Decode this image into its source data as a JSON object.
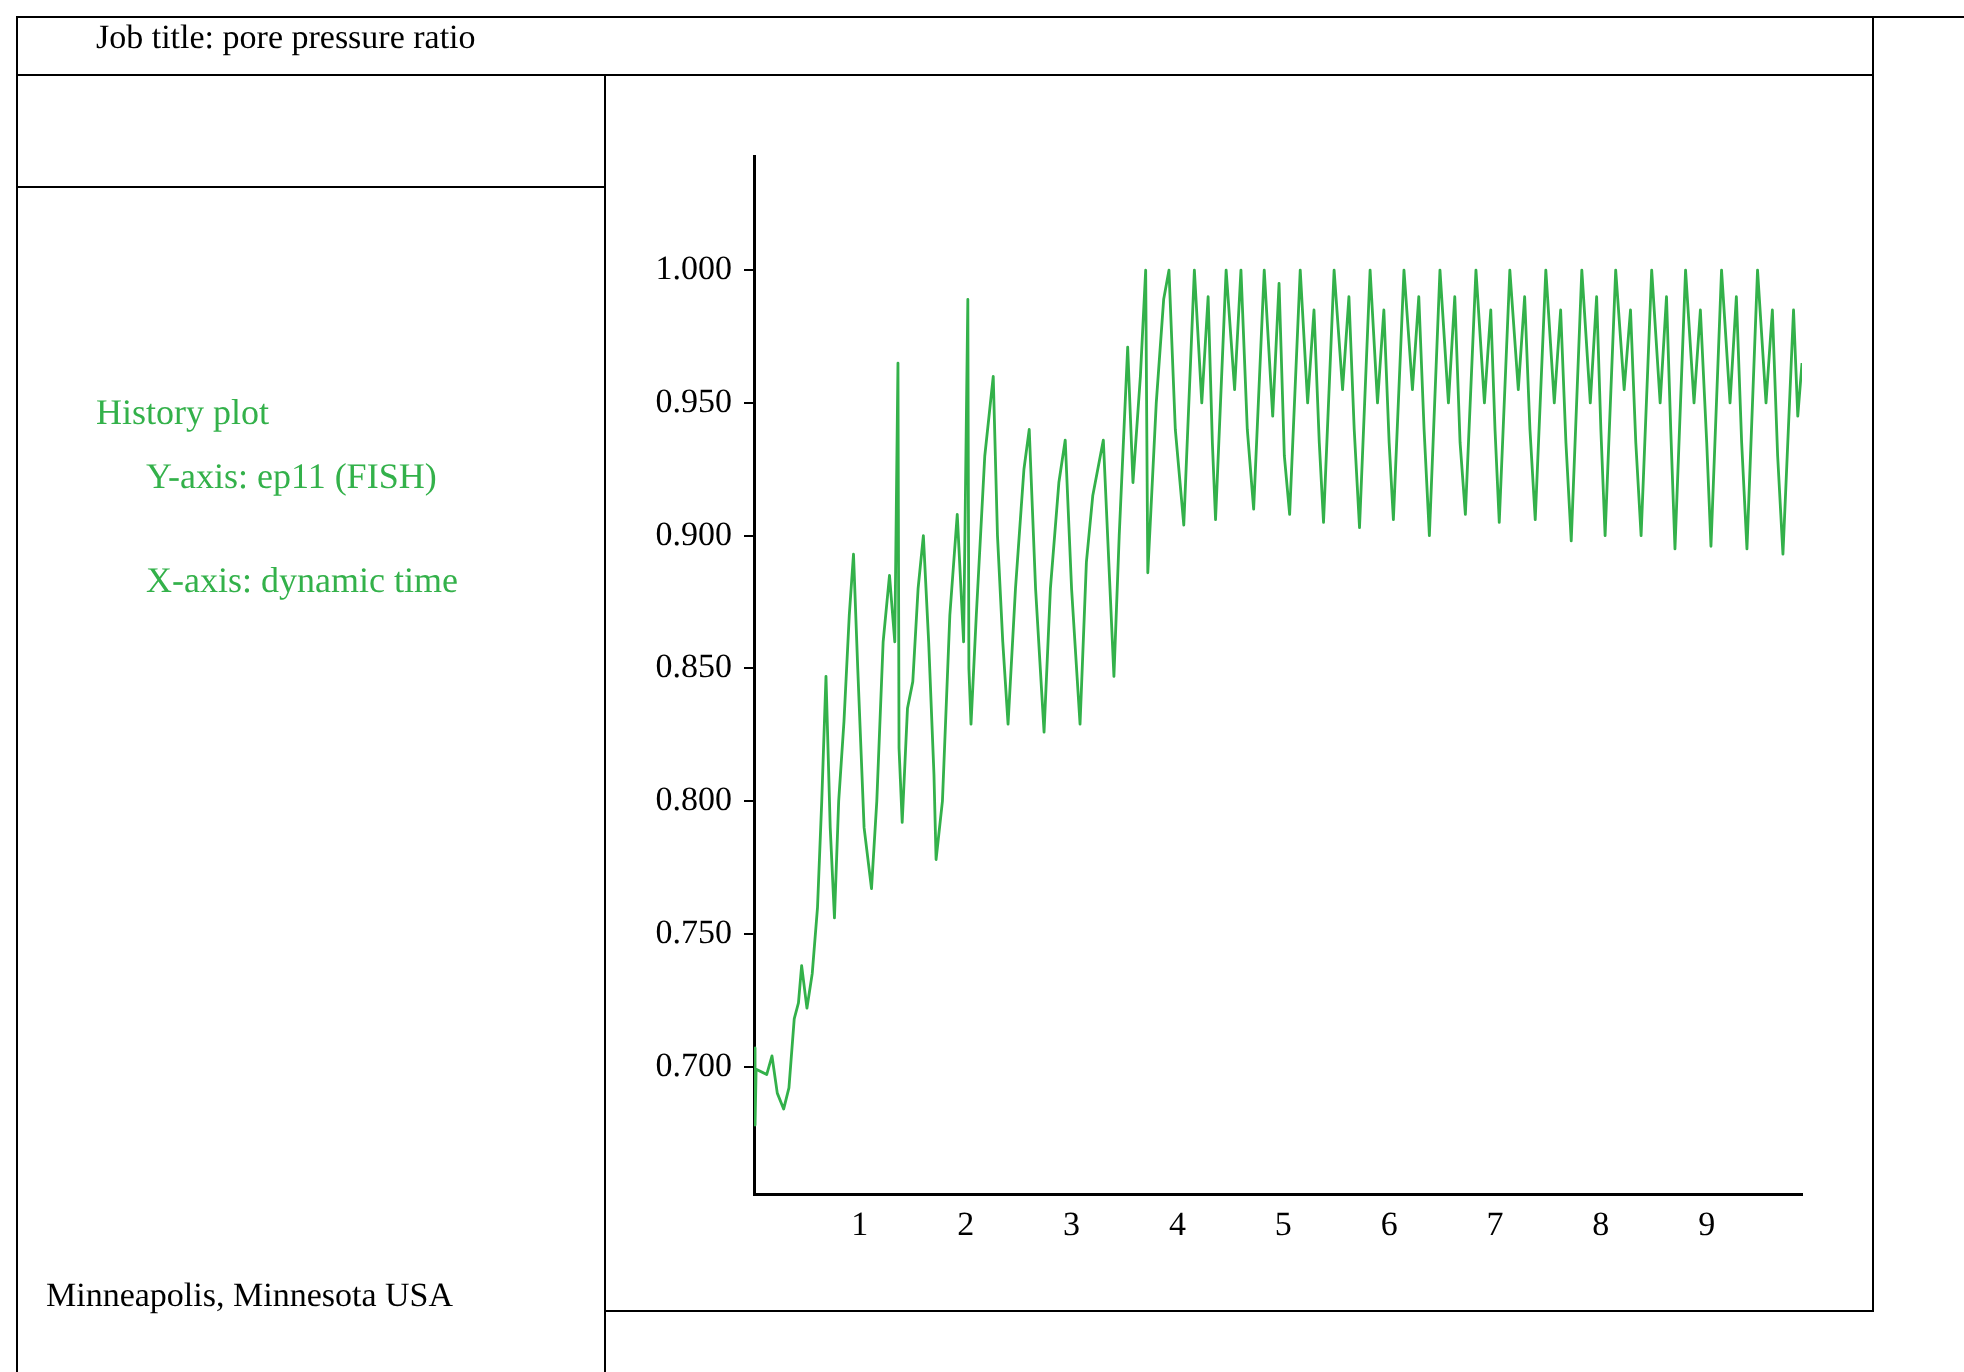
{
  "chart_data": {
    "type": "line",
    "title": "Job title: pore pressure ratio",
    "annotations": [
      "History plot",
      "Y-axis: ep11 (FISH)",
      "X-axis: dynamic time",
      "Minneapolis, Minnesota USA"
    ],
    "color": "#33b14a",
    "marker": "none",
    "xlim": [
      0,
      9.9
    ],
    "xticks": [
      1,
      2,
      3,
      4,
      5,
      6,
      7,
      8,
      9
    ],
    "ylim": [
      0.652,
      1.043
    ],
    "yticks": [
      {
        "value": 0.7,
        "label": "0.700"
      },
      {
        "value": 0.75,
        "label": "0.750"
      },
      {
        "value": 0.8,
        "label": "0.800"
      },
      {
        "value": 0.85,
        "label": "0.850"
      },
      {
        "value": 0.9,
        "label": "0.900"
      },
      {
        "value": 0.95,
        "label": "0.950"
      },
      {
        "value": 1.0,
        "label": "1.000"
      }
    ],
    "x": [
      0,
      0.01,
      0.02,
      0.12,
      0.17,
      0.22,
      0.28,
      0.33,
      0.38,
      0.42,
      0.45,
      0.5,
      0.55,
      0.6,
      0.64,
      0.68,
      0.72,
      0.76,
      0.8,
      0.85,
      0.9,
      0.94,
      0.98,
      1.04,
      1.11,
      1.16,
      1.22,
      1.28,
      1.33,
      1.36,
      1.37,
      1.4,
      1.45,
      1.5,
      1.55,
      1.6,
      1.65,
      1.7,
      1.72,
      1.78,
      1.85,
      1.92,
      1.98,
      2.02,
      2.03,
      2.05,
      2.1,
      2.18,
      2.26,
      2.3,
      2.35,
      2.4,
      2.47,
      2.55,
      2.6,
      2.66,
      2.74,
      2.8,
      2.88,
      2.94,
      3.0,
      3.08,
      3.14,
      3.2,
      3.3,
      3.4,
      3.45,
      3.53,
      3.58,
      3.65,
      3.7,
      3.72,
      3.8,
      3.87,
      3.92,
      3.98,
      4.06,
      4.16,
      4.23,
      4.29,
      4.33,
      4.36,
      4.46,
      4.54,
      4.6,
      4.66,
      4.72,
      4.82,
      4.9,
      4.96,
      5.01,
      5.06,
      5.16,
      5.23,
      5.29,
      5.34,
      5.38,
      5.48,
      5.56,
      5.62,
      5.67,
      5.72,
      5.82,
      5.89,
      5.95,
      6.0,
      6.04,
      6.14,
      6.22,
      6.28,
      6.33,
      6.38,
      6.48,
      6.56,
      6.62,
      6.67,
      6.72,
      6.82,
      6.9,
      6.96,
      7.0,
      7.04,
      7.14,
      7.22,
      7.28,
      7.33,
      7.38,
      7.48,
      7.56,
      7.62,
      7.67,
      7.72,
      7.82,
      7.9,
      7.96,
      8.0,
      8.04,
      8.14,
      8.22,
      8.28,
      8.33,
      8.38,
      8.48,
      8.56,
      8.62,
      8.66,
      8.7,
      8.8,
      8.88,
      8.94,
      9.0,
      9.04,
      9.14,
      9.22,
      9.28,
      9.33,
      9.38,
      9.48,
      9.56,
      9.62,
      9.67,
      9.72,
      9.82,
      9.86,
      9.9
    ],
    "values": [
      0.707,
      0.678,
      0.699,
      0.697,
      0.704,
      0.69,
      0.684,
      0.692,
      0.718,
      0.724,
      0.738,
      0.722,
      0.735,
      0.76,
      0.8,
      0.847,
      0.79,
      0.756,
      0.8,
      0.83,
      0.87,
      0.893,
      0.85,
      0.79,
      0.767,
      0.8,
      0.86,
      0.885,
      0.86,
      0.965,
      0.82,
      0.792,
      0.835,
      0.845,
      0.88,
      0.9,
      0.86,
      0.81,
      0.778,
      0.8,
      0.87,
      0.908,
      0.86,
      0.989,
      0.85,
      0.829,
      0.87,
      0.93,
      0.96,
      0.9,
      0.86,
      0.829,
      0.88,
      0.925,
      0.94,
      0.88,
      0.826,
      0.88,
      0.92,
      0.936,
      0.88,
      0.829,
      0.89,
      0.915,
      0.936,
      0.847,
      0.9,
      0.971,
      0.92,
      0.96,
      1.0,
      0.886,
      0.95,
      0.989,
      1.0,
      0.94,
      0.904,
      1.0,
      0.95,
      0.99,
      0.935,
      0.906,
      1.0,
      0.955,
      1.0,
      0.94,
      0.91,
      1.0,
      0.945,
      0.995,
      0.93,
      0.908,
      1.0,
      0.95,
      0.985,
      0.935,
      0.905,
      1.0,
      0.955,
      0.99,
      0.94,
      0.903,
      1.0,
      0.95,
      0.985,
      0.935,
      0.906,
      1.0,
      0.955,
      0.99,
      0.94,
      0.9,
      1.0,
      0.95,
      0.99,
      0.935,
      0.908,
      1.0,
      0.95,
      0.985,
      0.94,
      0.905,
      1.0,
      0.955,
      0.99,
      0.94,
      0.906,
      1.0,
      0.95,
      0.985,
      0.935,
      0.898,
      1.0,
      0.95,
      0.99,
      0.94,
      0.9,
      1.0,
      0.955,
      0.985,
      0.935,
      0.9,
      1.0,
      0.95,
      0.99,
      0.94,
      0.895,
      1.0,
      0.95,
      0.985,
      0.935,
      0.896,
      1.0,
      0.95,
      0.99,
      0.935,
      0.895,
      1.0,
      0.95,
      0.985,
      0.93,
      0.893,
      0.985,
      0.945,
      0.965
    ]
  }
}
